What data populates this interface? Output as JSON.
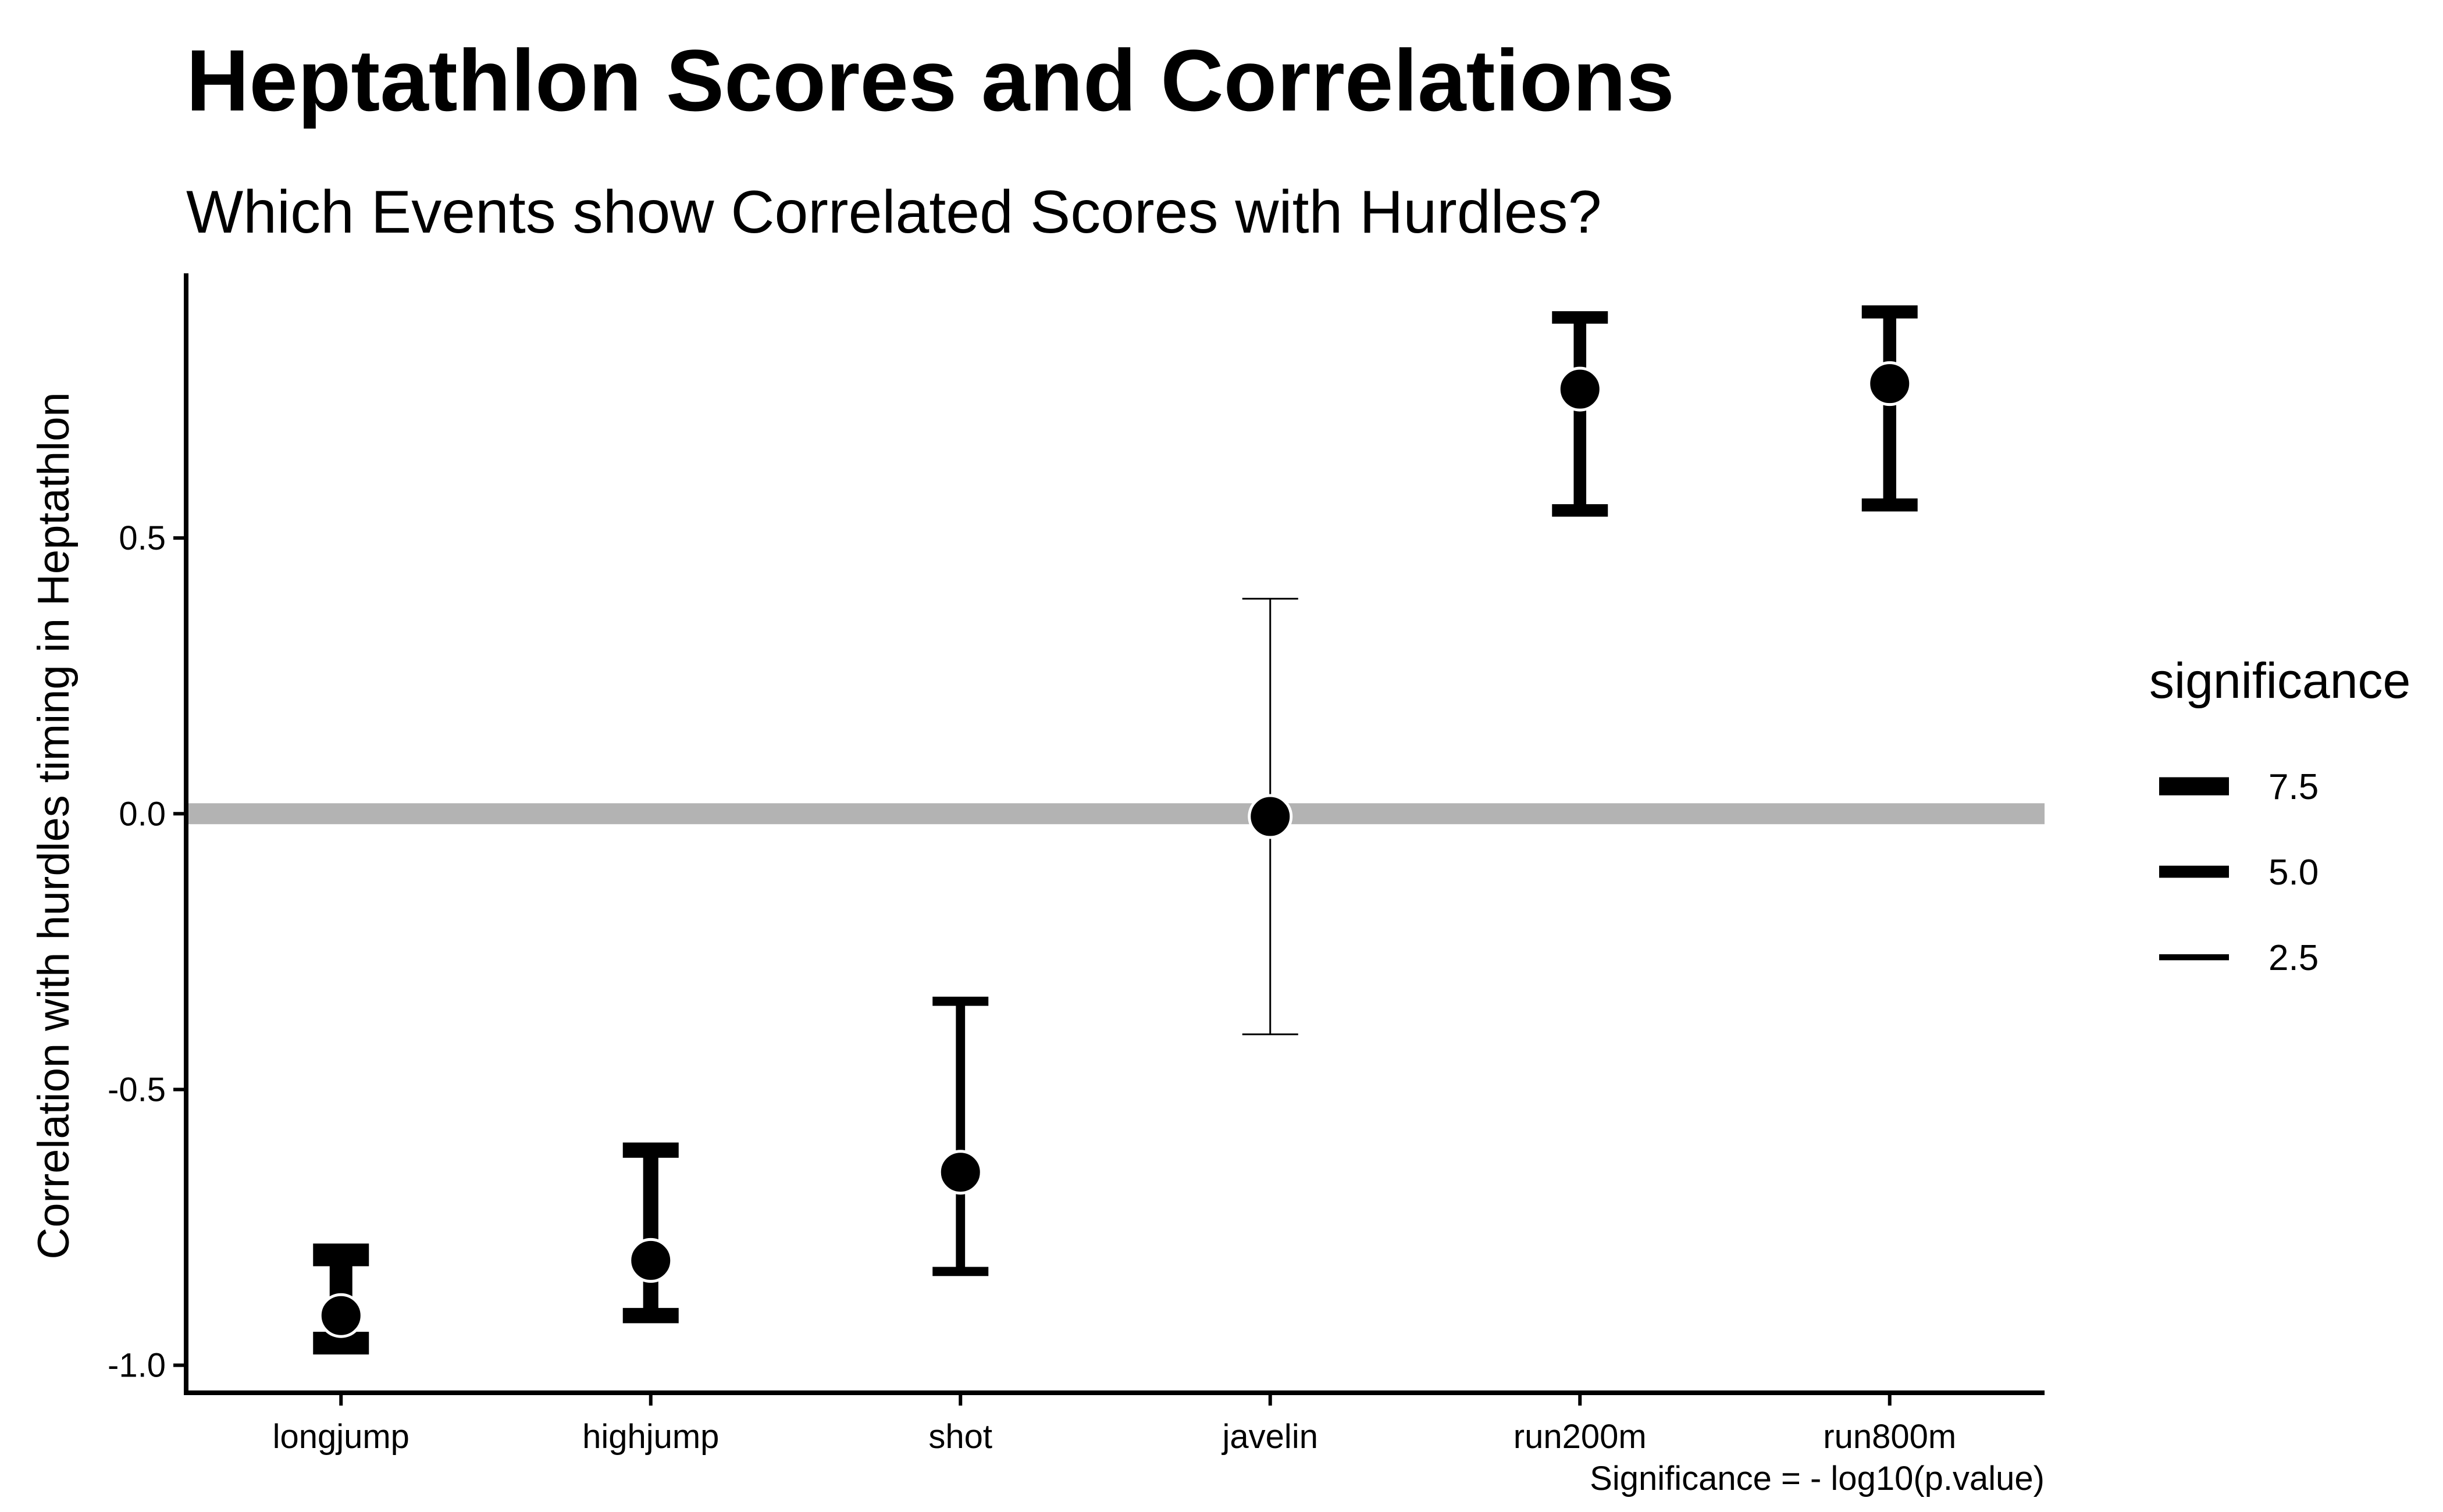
{
  "chart_data": {
    "type": "errorbar",
    "title": "Heptathlon Scores and Correlations",
    "subtitle": "Which Events show Correlated Scores with Hurdles?",
    "xlabel": "",
    "ylabel": "Correlation with hurdles timing in Heptathlon",
    "caption": "Significance = - log10(p.value)",
    "categories": [
      "longjump",
      "highjump",
      "shot",
      "javelin",
      "run200m",
      "run800m"
    ],
    "estimate": [
      -0.91,
      -0.81,
      -0.65,
      -0.005,
      0.77,
      0.78
    ],
    "conf_low": [
      -0.96,
      -0.91,
      -0.83,
      -0.4,
      0.55,
      0.56
    ],
    "conf_high": [
      -0.8,
      -0.61,
      -0.34,
      0.39,
      0.9,
      0.91
    ],
    "significance": [
      9.4,
      6.3,
      3.8,
      0.02,
      5.2,
      5.4
    ],
    "reference_line": 0,
    "ylim": [
      -1.05,
      0.98
    ],
    "yticks": [
      -1.0,
      -0.5,
      0.0,
      0.5
    ],
    "ytick_labels": [
      "-1.0",
      "-0.5",
      "0.0",
      "0.5"
    ],
    "grid": false,
    "legend": {
      "title": "significance",
      "position": "right",
      "entries": [
        {
          "label": "7.5",
          "value": 7.5
        },
        {
          "label": "5.0",
          "value": 5.0
        },
        {
          "label": "2.5",
          "value": 2.5
        }
      ]
    },
    "colors": {
      "marks": "#000000",
      "point_outline": "#ffffff",
      "reference_line": "#b3b3b3",
      "axis": "#000000"
    }
  }
}
